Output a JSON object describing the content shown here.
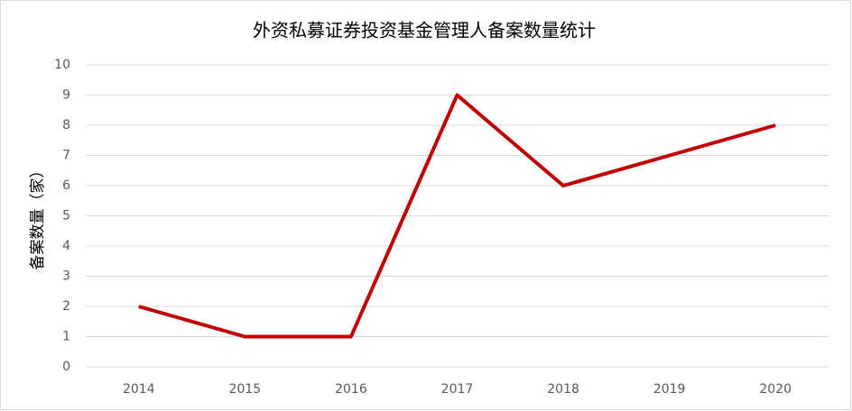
{
  "chart_data": {
    "type": "line",
    "title": "外资私募证券投资基金管理人备案数量统计",
    "y_label": "备案数量（家）",
    "categories": [
      "2014",
      "2015",
      "2016",
      "2017",
      "2018",
      "2019",
      "2020"
    ],
    "values": [
      2,
      1,
      1,
      9,
      6,
      7,
      8
    ],
    "color": "#c00000",
    "ylim": [
      0,
      10
    ],
    "yticks": [
      0,
      1,
      2,
      3,
      4,
      5,
      6,
      7,
      8,
      9,
      10
    ],
    "grid": true
  }
}
